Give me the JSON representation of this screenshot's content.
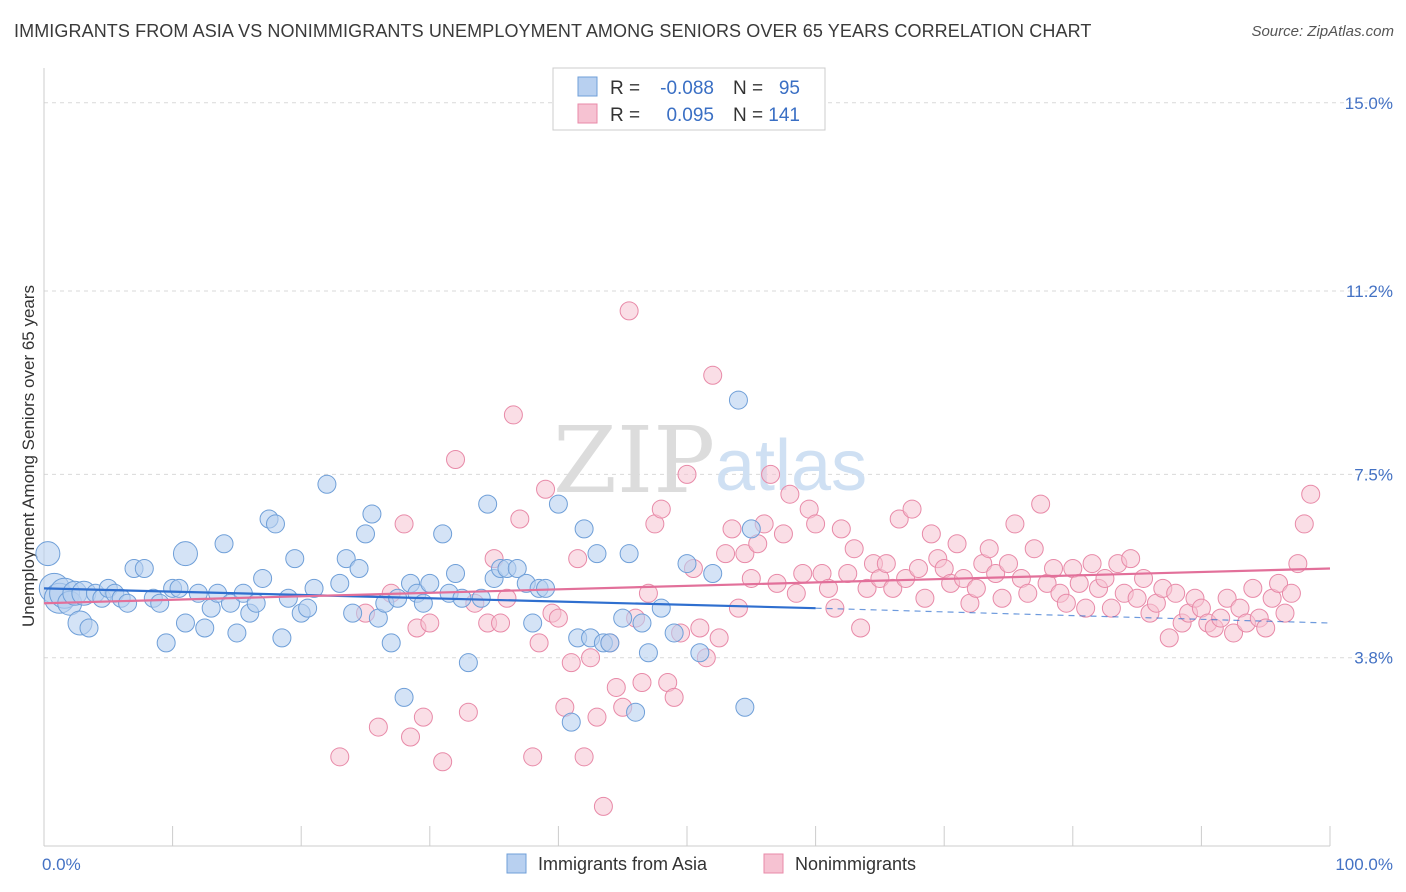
{
  "header": {
    "title": "IMMIGRANTS FROM ASIA VS NONIMMIGRANTS UNEMPLOYMENT AMONG SENIORS OVER 65 YEARS CORRELATION CHART",
    "source": "Source: ZipAtlas.com"
  },
  "watermark": {
    "zip": "ZIP",
    "atlas": "atlas"
  },
  "legend": {
    "r_label": "R =",
    "n_label": "N =",
    "rows": [
      {
        "r": "-0.088",
        "n": "95"
      },
      {
        "r": "0.095",
        "n": "141"
      }
    ]
  },
  "bottom_legend": [
    "Immigrants from Asia",
    "Nonimmigrants"
  ],
  "colors": {
    "blue_fill": "#b8d0f0",
    "blue_stroke": "#6f9fd8",
    "blue_line": "#2f6fcf",
    "pink_fill": "#f6c2d2",
    "pink_stroke": "#e88aa8",
    "pink_line": "#e2709a",
    "axis_text": "#4472c4",
    "grid": "#d9d9d9"
  },
  "chart_data": {
    "type": "scatter",
    "title": "IMMIGRANTS FROM ASIA VS NONIMMIGRANTS UNEMPLOYMENT AMONG SENIORS OVER 65 YEARS CORRELATION CHART",
    "xlabel": "",
    "ylabel": "Unemployment Among Seniors over 65 years",
    "xlim": [
      0,
      100
    ],
    "ylim": [
      0,
      15.5
    ],
    "x_tick_labels": [
      "0.0%",
      "100.0%"
    ],
    "y_ticks": [
      3.8,
      7.5,
      11.2,
      15.0
    ],
    "y_tick_labels": [
      "3.8%",
      "7.5%",
      "11.2%",
      "15.0%"
    ],
    "grid": true,
    "legend_position": "top-center",
    "series": [
      {
        "name": "Immigrants from Asia",
        "r": -0.088,
        "n": 95,
        "trend": {
          "x0": 0,
          "y0": 5.2,
          "x1": 60,
          "y1": 4.8,
          "dashed_to_x": 100,
          "dashed_to_y": 4.5
        },
        "points": [
          [
            0.3,
            5.9,
            2
          ],
          [
            0.8,
            5.2,
            3
          ],
          [
            1.2,
            5.0,
            3
          ],
          [
            1.6,
            5.1,
            3
          ],
          [
            2.0,
            4.9,
            2
          ],
          [
            2.4,
            5.1,
            2
          ],
          [
            2.8,
            4.5,
            2
          ],
          [
            3.1,
            5.1,
            2
          ],
          [
            3.5,
            4.4,
            1
          ],
          [
            4.0,
            5.1,
            1
          ],
          [
            4.5,
            5.0,
            1
          ],
          [
            5.0,
            5.2,
            1
          ],
          [
            5.5,
            5.1,
            1
          ],
          [
            6.0,
            5.0,
            1
          ],
          [
            6.5,
            4.9,
            1
          ],
          [
            7.0,
            5.6,
            1
          ],
          [
            7.8,
            5.6,
            1
          ],
          [
            8.5,
            5.0,
            1
          ],
          [
            9.0,
            4.9,
            1
          ],
          [
            9.5,
            4.1,
            1
          ],
          [
            10.0,
            5.2,
            1
          ],
          [
            10.5,
            5.2,
            1
          ],
          [
            11.0,
            4.5,
            1
          ],
          [
            11.0,
            5.9,
            2
          ],
          [
            12.0,
            5.1,
            1
          ],
          [
            12.5,
            4.4,
            1
          ],
          [
            13.0,
            4.8,
            1
          ],
          [
            13.5,
            5.1,
            1
          ],
          [
            14.0,
            6.1,
            1
          ],
          [
            14.5,
            4.9,
            1
          ],
          [
            15.0,
            4.3,
            1
          ],
          [
            15.5,
            5.1,
            1
          ],
          [
            16.0,
            4.7,
            1
          ],
          [
            16.5,
            4.9,
            1
          ],
          [
            17.0,
            5.4,
            1
          ],
          [
            17.5,
            6.6,
            1
          ],
          [
            18.0,
            6.5,
            1
          ],
          [
            18.5,
            4.2,
            1
          ],
          [
            19.0,
            5.0,
            1
          ],
          [
            19.5,
            5.8,
            1
          ],
          [
            20.0,
            4.7,
            1
          ],
          [
            20.5,
            4.8,
            1
          ],
          [
            21.0,
            5.2,
            1
          ],
          [
            22.0,
            7.3,
            1
          ],
          [
            23.0,
            5.3,
            1
          ],
          [
            23.5,
            5.8,
            1
          ],
          [
            24.0,
            4.7,
            1
          ],
          [
            24.5,
            5.6,
            1
          ],
          [
            25.0,
            6.3,
            1
          ],
          [
            25.5,
            6.7,
            1
          ],
          [
            26.0,
            4.6,
            1
          ],
          [
            26.5,
            4.9,
            1
          ],
          [
            27.0,
            4.1,
            1
          ],
          [
            27.5,
            5.0,
            1
          ],
          [
            28.0,
            3.0,
            1
          ],
          [
            28.5,
            5.3,
            1
          ],
          [
            29.0,
            5.1,
            1
          ],
          [
            29.5,
            4.9,
            1
          ],
          [
            30.0,
            5.3,
            1
          ],
          [
            31.0,
            6.3,
            1
          ],
          [
            31.5,
            5.1,
            1
          ],
          [
            32.0,
            5.5,
            1
          ],
          [
            32.5,
            5.0,
            1
          ],
          [
            33.0,
            3.7,
            1
          ],
          [
            34.0,
            5.0,
            1
          ],
          [
            34.5,
            6.9,
            1
          ],
          [
            35.0,
            5.4,
            1
          ],
          [
            35.5,
            5.6,
            1
          ],
          [
            36.0,
            5.6,
            1
          ],
          [
            36.8,
            5.6,
            1
          ],
          [
            37.5,
            5.3,
            1
          ],
          [
            38.0,
            4.5,
            1
          ],
          [
            38.5,
            5.2,
            1
          ],
          [
            39.0,
            5.2,
            1
          ],
          [
            40.0,
            6.9,
            1
          ],
          [
            41.0,
            2.5,
            1
          ],
          [
            41.5,
            4.2,
            1
          ],
          [
            42.0,
            6.4,
            1
          ],
          [
            42.5,
            4.2,
            1
          ],
          [
            43.0,
            5.9,
            1
          ],
          [
            43.5,
            4.1,
            1
          ],
          [
            44.0,
            4.1,
            1
          ],
          [
            45.0,
            4.6,
            1
          ],
          [
            45.5,
            5.9,
            1
          ],
          [
            46.0,
            2.7,
            1
          ],
          [
            46.5,
            4.5,
            1
          ],
          [
            47.0,
            3.9,
            1
          ],
          [
            48.0,
            4.8,
            1
          ],
          [
            49.0,
            4.3,
            1
          ],
          [
            50.0,
            5.7,
            1
          ],
          [
            51.0,
            3.9,
            1
          ],
          [
            52.0,
            5.5,
            1
          ],
          [
            54.0,
            9.0,
            1
          ],
          [
            54.5,
            2.8,
            1
          ],
          [
            55.0,
            6.4,
            1
          ]
        ]
      },
      {
        "name": "Nonimmigrants",
        "r": 0.095,
        "n": 141,
        "trend": {
          "x0": 0,
          "y0": 4.9,
          "x1": 100,
          "y1": 5.6
        },
        "points": [
          [
            23.0,
            1.8,
            1
          ],
          [
            25.0,
            4.7,
            1
          ],
          [
            26.0,
            2.4,
            1
          ],
          [
            27.0,
            5.1,
            1
          ],
          [
            28.0,
            6.5,
            1
          ],
          [
            28.5,
            2.2,
            1
          ],
          [
            29.0,
            4.4,
            1
          ],
          [
            29.5,
            2.6,
            1
          ],
          [
            30.0,
            4.5,
            1
          ],
          [
            31.0,
            1.7,
            1
          ],
          [
            32.0,
            7.8,
            1
          ],
          [
            33.0,
            2.7,
            1
          ],
          [
            33.5,
            4.9,
            1
          ],
          [
            34.5,
            4.5,
            1
          ],
          [
            35.0,
            5.8,
            1
          ],
          [
            35.5,
            4.5,
            1
          ],
          [
            36.0,
            5.0,
            1
          ],
          [
            36.5,
            8.7,
            1
          ],
          [
            37.0,
            6.6,
            1
          ],
          [
            38.0,
            1.8,
            1
          ],
          [
            38.5,
            4.1,
            1
          ],
          [
            39.0,
            7.2,
            1
          ],
          [
            39.5,
            4.7,
            1
          ],
          [
            40.0,
            4.6,
            1
          ],
          [
            40.5,
            2.8,
            1
          ],
          [
            41.0,
            3.7,
            1
          ],
          [
            41.5,
            5.8,
            1
          ],
          [
            42.0,
            1.8,
            1
          ],
          [
            42.5,
            3.8,
            1
          ],
          [
            43.0,
            2.6,
            1
          ],
          [
            43.5,
            0.8,
            1
          ],
          [
            44.0,
            4.1,
            1
          ],
          [
            44.5,
            3.2,
            1
          ],
          [
            45.0,
            2.8,
            1
          ],
          [
            45.5,
            10.8,
            1
          ],
          [
            46.0,
            4.6,
            1
          ],
          [
            46.5,
            3.3,
            1
          ],
          [
            47.0,
            5.1,
            1
          ],
          [
            47.5,
            6.5,
            1
          ],
          [
            48.0,
            6.8,
            1
          ],
          [
            48.5,
            3.3,
            1
          ],
          [
            49.0,
            3.0,
            1
          ],
          [
            49.5,
            4.3,
            1
          ],
          [
            50.0,
            7.5,
            1
          ],
          [
            50.5,
            5.6,
            1
          ],
          [
            51.0,
            4.4,
            1
          ],
          [
            51.5,
            3.8,
            1
          ],
          [
            52.0,
            9.5,
            1
          ],
          [
            52.5,
            4.2,
            1
          ],
          [
            53.0,
            5.9,
            1
          ],
          [
            53.5,
            6.4,
            1
          ],
          [
            54.0,
            4.8,
            1
          ],
          [
            54.5,
            5.9,
            1
          ],
          [
            55.0,
            5.4,
            1
          ],
          [
            55.5,
            6.1,
            1
          ],
          [
            56.0,
            6.5,
            1
          ],
          [
            56.5,
            7.5,
            1
          ],
          [
            57.0,
            5.3,
            1
          ],
          [
            57.5,
            6.3,
            1
          ],
          [
            58.0,
            7.1,
            1
          ],
          [
            58.5,
            5.1,
            1
          ],
          [
            59.0,
            5.5,
            1
          ],
          [
            59.5,
            6.8,
            1
          ],
          [
            60.0,
            6.5,
            1
          ],
          [
            60.5,
            5.5,
            1
          ],
          [
            61.0,
            5.2,
            1
          ],
          [
            61.5,
            4.8,
            1
          ],
          [
            62.0,
            6.4,
            1
          ],
          [
            62.5,
            5.5,
            1
          ],
          [
            63.0,
            6.0,
            1
          ],
          [
            63.5,
            4.4,
            1
          ],
          [
            64.0,
            5.2,
            1
          ],
          [
            64.5,
            5.7,
            1
          ],
          [
            65.0,
            5.4,
            1
          ],
          [
            65.5,
            5.7,
            1
          ],
          [
            66.0,
            5.2,
            1
          ],
          [
            66.5,
            6.6,
            1
          ],
          [
            67.0,
            5.4,
            1
          ],
          [
            67.5,
            6.8,
            1
          ],
          [
            68.0,
            5.6,
            1
          ],
          [
            68.5,
            5.0,
            1
          ],
          [
            69.0,
            6.3,
            1
          ],
          [
            69.5,
            5.8,
            1
          ],
          [
            70.0,
            5.6,
            1
          ],
          [
            70.5,
            5.3,
            1
          ],
          [
            71.0,
            6.1,
            1
          ],
          [
            71.5,
            5.4,
            1
          ],
          [
            72.0,
            4.9,
            1
          ],
          [
            72.5,
            5.2,
            1
          ],
          [
            73.0,
            5.7,
            1
          ],
          [
            73.5,
            6.0,
            1
          ],
          [
            74.0,
            5.5,
            1
          ],
          [
            74.5,
            5.0,
            1
          ],
          [
            75.0,
            5.7,
            1
          ],
          [
            75.5,
            6.5,
            1
          ],
          [
            76.0,
            5.4,
            1
          ],
          [
            76.5,
            5.1,
            1
          ],
          [
            77.0,
            6.0,
            1
          ],
          [
            77.5,
            6.9,
            1
          ],
          [
            78.0,
            5.3,
            1
          ],
          [
            78.5,
            5.6,
            1
          ],
          [
            79.0,
            5.1,
            1
          ],
          [
            79.5,
            4.9,
            1
          ],
          [
            80.0,
            5.6,
            1
          ],
          [
            80.5,
            5.3,
            1
          ],
          [
            81.0,
            4.8,
            1
          ],
          [
            81.5,
            5.7,
            1
          ],
          [
            82.0,
            5.2,
            1
          ],
          [
            82.5,
            5.4,
            1
          ],
          [
            83.0,
            4.8,
            1
          ],
          [
            83.5,
            5.7,
            1
          ],
          [
            84.0,
            5.1,
            1
          ],
          [
            84.5,
            5.8,
            1
          ],
          [
            85.0,
            5.0,
            1
          ],
          [
            85.5,
            5.4,
            1
          ],
          [
            86.0,
            4.7,
            1
          ],
          [
            86.5,
            4.9,
            1
          ],
          [
            87.0,
            5.2,
            1
          ],
          [
            87.5,
            4.2,
            1
          ],
          [
            88.0,
            5.1,
            1
          ],
          [
            88.5,
            4.5,
            1
          ],
          [
            89.0,
            4.7,
            1
          ],
          [
            89.5,
            5.0,
            1
          ],
          [
            90.0,
            4.8,
            1
          ],
          [
            90.5,
            4.5,
            1
          ],
          [
            91.0,
            4.4,
            1
          ],
          [
            91.5,
            4.6,
            1
          ],
          [
            92.0,
            5.0,
            1
          ],
          [
            92.5,
            4.3,
            1
          ],
          [
            93.0,
            4.8,
            1
          ],
          [
            93.5,
            4.5,
            1
          ],
          [
            94.0,
            5.2,
            1
          ],
          [
            94.5,
            4.6,
            1
          ],
          [
            95.0,
            4.4,
            1
          ],
          [
            95.5,
            5.0,
            1
          ],
          [
            96.0,
            5.3,
            1
          ],
          [
            96.5,
            4.7,
            1
          ],
          [
            97.0,
            5.1,
            1
          ],
          [
            97.5,
            5.7,
            1
          ],
          [
            98.0,
            6.5,
            1
          ],
          [
            98.5,
            7.1,
            1
          ]
        ]
      }
    ]
  }
}
